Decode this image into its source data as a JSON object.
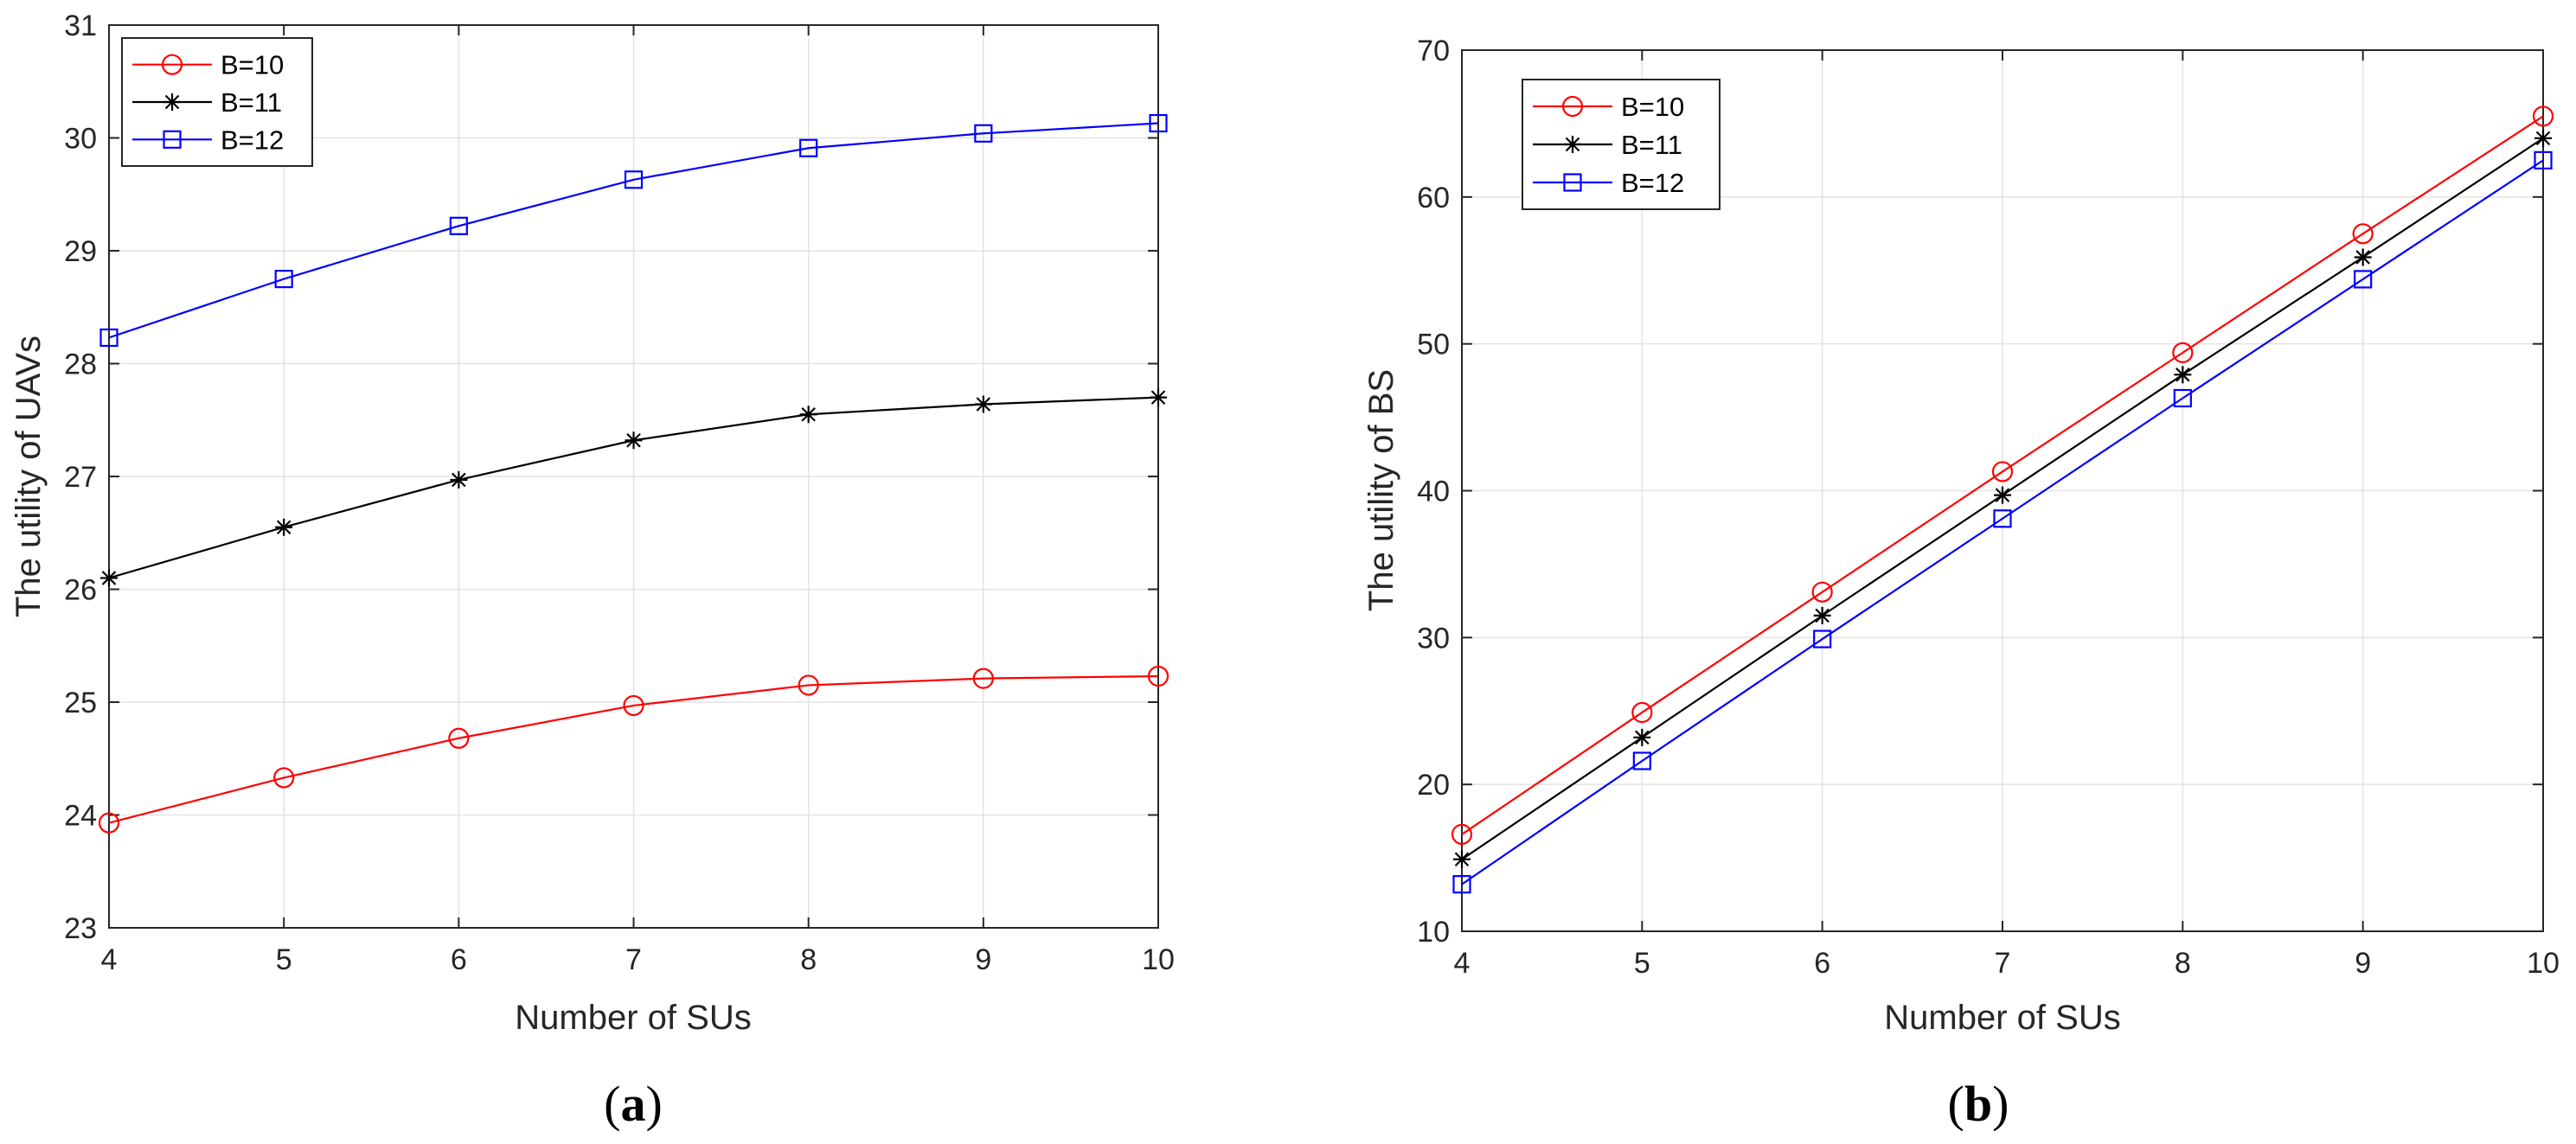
{
  "chart_data": [
    {
      "type": "line",
      "panel_label": "a",
      "title": "",
      "xlabel": "Number of SUs",
      "ylabel": "The utility of UAVs",
      "x": [
        4,
        5,
        6,
        7,
        8,
        9,
        10
      ],
      "xlim": [
        4,
        10
      ],
      "ylim": [
        23,
        31
      ],
      "xticks": [
        4,
        5,
        6,
        7,
        8,
        9,
        10
      ],
      "yticks": [
        23,
        24,
        25,
        26,
        27,
        28,
        29,
        30,
        31
      ],
      "grid": true,
      "legend_location": "top-left",
      "series": [
        {
          "name": "B=10",
          "color": "#ff0000",
          "marker": "circle",
          "values": [
            23.93,
            24.33,
            24.68,
            24.97,
            25.15,
            25.21,
            25.23
          ]
        },
        {
          "name": "B=11",
          "color": "#000000",
          "marker": "asterisk",
          "values": [
            26.1,
            26.55,
            26.97,
            27.32,
            27.55,
            27.64,
            27.7
          ]
        },
        {
          "name": "B=12",
          "color": "#0000ff",
          "marker": "square",
          "values": [
            28.23,
            28.75,
            29.22,
            29.63,
            29.91,
            30.04,
            30.13
          ]
        }
      ]
    },
    {
      "type": "line",
      "panel_label": "b",
      "title": "",
      "xlabel": "Number of SUs",
      "ylabel": "The utility of BS",
      "x": [
        4,
        5,
        6,
        7,
        8,
        9,
        10
      ],
      "xlim": [
        4,
        10
      ],
      "ylim": [
        10,
        70
      ],
      "xticks": [
        4,
        5,
        6,
        7,
        8,
        9,
        10
      ],
      "yticks": [
        10,
        20,
        30,
        40,
        50,
        60,
        70
      ],
      "grid": true,
      "legend_location": "top-left",
      "series": [
        {
          "name": "B=10",
          "color": "#ff0000",
          "marker": "circle",
          "values": [
            16.6,
            24.9,
            33.1,
            41.3,
            49.4,
            57.5,
            65.5
          ]
        },
        {
          "name": "B=11",
          "color": "#000000",
          "marker": "asterisk",
          "values": [
            14.9,
            23.2,
            31.5,
            39.7,
            47.9,
            55.9,
            64.0
          ]
        },
        {
          "name": "B=12",
          "color": "#0000ff",
          "marker": "square",
          "values": [
            13.2,
            21.6,
            29.9,
            38.1,
            46.3,
            54.4,
            62.5
          ]
        }
      ]
    }
  ]
}
